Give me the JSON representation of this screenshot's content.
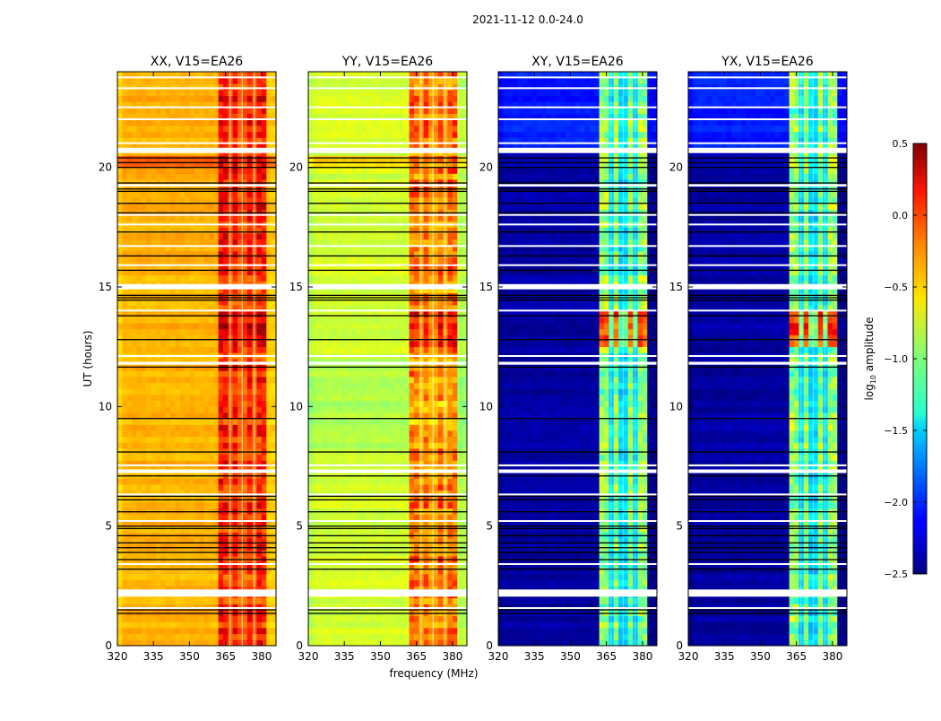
{
  "chart_data": {
    "type": "heatmap",
    "title": "2021-11-12 0.0-24.0",
    "xlabel": "frequency (MHz)",
    "ylabel": "UT (hours)",
    "xlim": [
      320,
      386
    ],
    "ylim": [
      0,
      24
    ],
    "xticks": [
      "320",
      "335",
      "350",
      "365",
      "380"
    ],
    "xtick_values": [
      320,
      335,
      350,
      365,
      380
    ],
    "yticks": [
      "0",
      "5",
      "10",
      "15",
      "20"
    ],
    "ytick_values": [
      0,
      5,
      10,
      15,
      20
    ],
    "freq_step_mhz": 2,
    "time_step_hours": 0.25,
    "colormap": "jet",
    "colorbar": {
      "label_main": "log",
      "label_sub": "10",
      "label_rest": " amplitude",
      "range": [
        -2.5,
        0.5
      ],
      "ticks": [
        "0.5",
        "0.0",
        "−0.5",
        "−1.0",
        "−1.5",
        "−2.0",
        "−2.5"
      ],
      "tick_values": [
        0.5,
        0.0,
        -0.5,
        -1.0,
        -1.5,
        -2.0,
        -2.5
      ]
    },
    "band_mhz": [
      362,
      381
    ],
    "band_dark_lines_mhz": [
      367,
      372,
      377
    ],
    "flagged_white_hours": [
      [
        1.55,
        0.06
      ],
      [
        2.05,
        0.3
      ],
      [
        3.4,
        0.05
      ],
      [
        5.2,
        0.05
      ],
      [
        6.3,
        0.06
      ],
      [
        7.22,
        0.15
      ],
      [
        7.5,
        0.08
      ],
      [
        11.75,
        0.12
      ],
      [
        12.1,
        0.05
      ],
      [
        14.0,
        0.05
      ],
      [
        14.9,
        0.22
      ],
      [
        15.9,
        0.05
      ],
      [
        16.7,
        0.05
      ],
      [
        17.6,
        0.05
      ],
      [
        18.0,
        0.05
      ],
      [
        19.2,
        0.1
      ],
      [
        20.6,
        0.22
      ],
      [
        21.0,
        0.05
      ],
      [
        22.0,
        0.05
      ],
      [
        22.5,
        0.05
      ],
      [
        23.3,
        0.05
      ],
      [
        23.75,
        0.05
      ]
    ],
    "black_line_hours": [
      1.35,
      1.5,
      3.2,
      3.6,
      3.9,
      4.1,
      4.3,
      4.6,
      4.9,
      5.0,
      5.6,
      6.1,
      6.25,
      7.1,
      8.1,
      9.5,
      11.65,
      12.8,
      13.8,
      14.45,
      14.55,
      14.65,
      15.7,
      16.3,
      17.3,
      18.1,
      18.5,
      19.0,
      19.1,
      19.35,
      20.0,
      20.2,
      20.4
    ],
    "panels": [
      {
        "title": "XX, V15=EA26",
        "base": -0.4,
        "band": 0.05,
        "dark_line": -0.35,
        "segments": [
          {
            "from": 19.9,
            "to": 20.5,
            "base": -0.15,
            "band": 0.2
          },
          {
            "from": 12.5,
            "to": 13.9,
            "base": -0.4,
            "band": 0.25
          }
        ]
      },
      {
        "title": "YY, V15=EA26",
        "base": -0.75,
        "band": -0.2,
        "dark_line": -0.55,
        "segments": [
          {
            "from": 20.0,
            "to": 20.5,
            "base": -0.5,
            "band": -0.1
          },
          {
            "from": 12.5,
            "to": 13.9,
            "base": -0.75,
            "band": 0.2
          },
          {
            "from": 8.0,
            "to": 12.0,
            "base": -0.85,
            "band": -0.3
          }
        ]
      },
      {
        "title": "XY, V15=EA26",
        "base": -2.4,
        "band": -0.95,
        "dark_line": -2.0,
        "segments": [
          {
            "from": 20.7,
            "to": 24,
            "base": -2.05,
            "band": -0.95
          },
          {
            "from": 12.5,
            "to": 13.9,
            "base": -2.4,
            "band": -0.05
          }
        ]
      },
      {
        "title": "YX, V15=EA26",
        "base": -2.4,
        "band": -0.95,
        "dark_line": -2.0,
        "segments": [
          {
            "from": 20.7,
            "to": 24,
            "base": -2.05,
            "band": -0.95
          },
          {
            "from": 12.5,
            "to": 13.9,
            "base": -2.4,
            "band": -0.05
          }
        ]
      }
    ]
  }
}
